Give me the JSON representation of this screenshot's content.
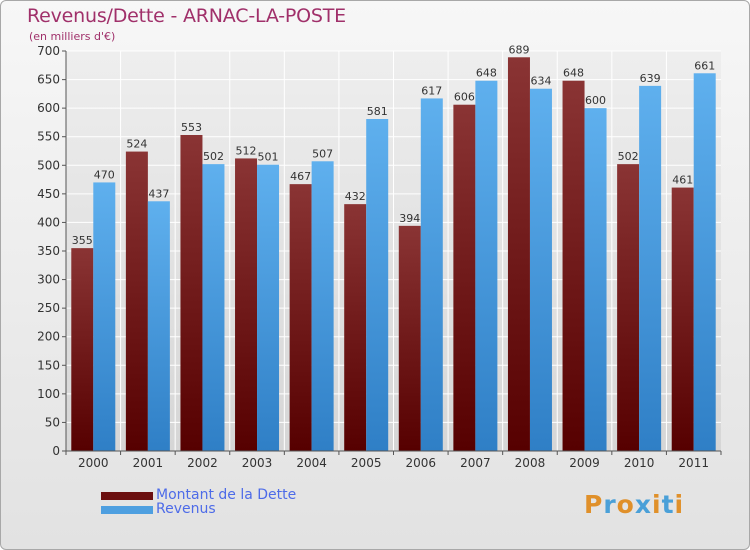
{
  "title": "Revenus/Dette - ARNAC-LA-POSTE",
  "subtitle": "(en milliers d'€)",
  "colors": {
    "debt": "#7a1c1c",
    "revenue": "#4e9fe0",
    "title": "#a0306a",
    "legend_text": "#4d6be8"
  },
  "legend": [
    {
      "label": "Montant de la Dette",
      "color": "#6b0f0f"
    },
    {
      "label": "Revenus",
      "color": "#4e9fe0"
    }
  ],
  "logo": {
    "text": "Proxiti"
  },
  "chart_data": {
    "type": "bar",
    "title": "Revenus/Dette - ARNAC-LA-POSTE",
    "subtitle": "(en milliers d'€)",
    "xlabel": "",
    "ylabel": "",
    "categories": [
      "2000",
      "2001",
      "2002",
      "2003",
      "2004",
      "2005",
      "2006",
      "2007",
      "2008",
      "2009",
      "2010",
      "2011"
    ],
    "series": [
      {
        "name": "Montant de la Dette",
        "values": [
          355,
          524,
          553,
          512,
          467,
          432,
          394,
          606,
          689,
          648,
          502,
          461
        ]
      },
      {
        "name": "Revenus",
        "values": [
          470,
          437,
          502,
          501,
          507,
          581,
          617,
          648,
          634,
          600,
          639,
          661
        ]
      }
    ],
    "ylim": [
      0,
      700
    ],
    "yticks": [
      0,
      50,
      100,
      150,
      200,
      250,
      300,
      350,
      400,
      450,
      500,
      550,
      600,
      650,
      700
    ],
    "grid": true,
    "legend_position": "bottom-left",
    "data_labels": true
  }
}
